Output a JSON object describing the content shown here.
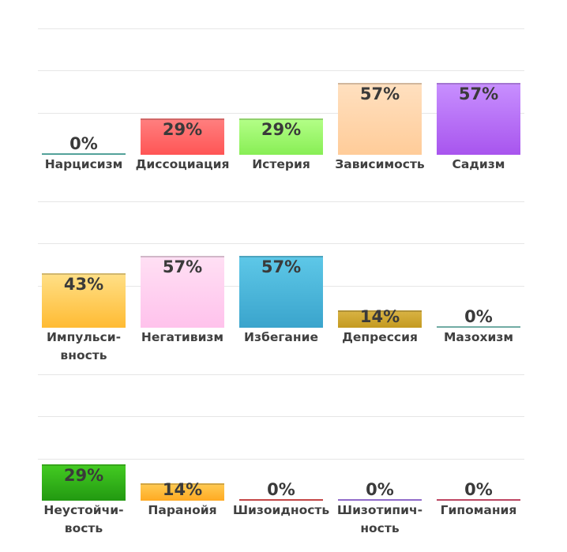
{
  "chart_data": [
    {
      "type": "bar",
      "categories": [
        "Нарцисизм",
        "Диссоциация",
        "Истерия",
        "Зависимость",
        "Садизм"
      ],
      "values": [
        0,
        29,
        29,
        57,
        57
      ],
      "value_labels": [
        "0%",
        "29%",
        "29%",
        "57%",
        "57%"
      ],
      "colors": [
        [
          "#8fd9d0",
          "#3fb5a8"
        ],
        [
          "#ff8080",
          "#ff5555"
        ],
        [
          "#b4ff88",
          "#88ee55"
        ],
        [
          "#ffe0c0",
          "#ffcc99"
        ],
        [
          "#c890ff",
          "#a855ee"
        ]
      ],
      "ylim": [
        0,
        100
      ],
      "grid": true
    },
    {
      "type": "bar",
      "categories": [
        "Импульси-\nвность",
        "Негативизм",
        "Избегание",
        "Депрессия",
        "Мазохизм"
      ],
      "values": [
        43,
        57,
        57,
        14,
        0
      ],
      "value_labels": [
        "43%",
        "57%",
        "57%",
        "14%",
        "0%"
      ],
      "colors": [
        [
          "#ffe088",
          "#ffbb33"
        ],
        [
          "#ffe0f4",
          "#ffc2ec"
        ],
        [
          "#5ec8e8",
          "#3aa4cc"
        ],
        [
          "#d9b445",
          "#c49a20"
        ],
        [
          "#a8e0d8",
          "#6cc4b8"
        ]
      ],
      "ylim": [
        0,
        100
      ],
      "grid": true
    },
    {
      "type": "bar",
      "categories": [
        "Неустойчи-\nвость",
        "Паранойя",
        "Шизоидность",
        "Шизотипич-\nность",
        "Гипомания"
      ],
      "values": [
        29,
        14,
        0,
        0,
        0
      ],
      "value_labels": [
        "29%",
        "14%",
        "0%",
        "0%",
        "0%"
      ],
      "colors": [
        [
          "#44cc22",
          "#229911"
        ],
        [
          "#ffcc55",
          "#ffaa22"
        ],
        [
          "#ff7777",
          "#dd3333"
        ],
        [
          "#c8a0ff",
          "#9966ee"
        ],
        [
          "#ff7799",
          "#cc3355"
        ]
      ],
      "ylim": [
        0,
        100
      ],
      "grid": true
    }
  ]
}
